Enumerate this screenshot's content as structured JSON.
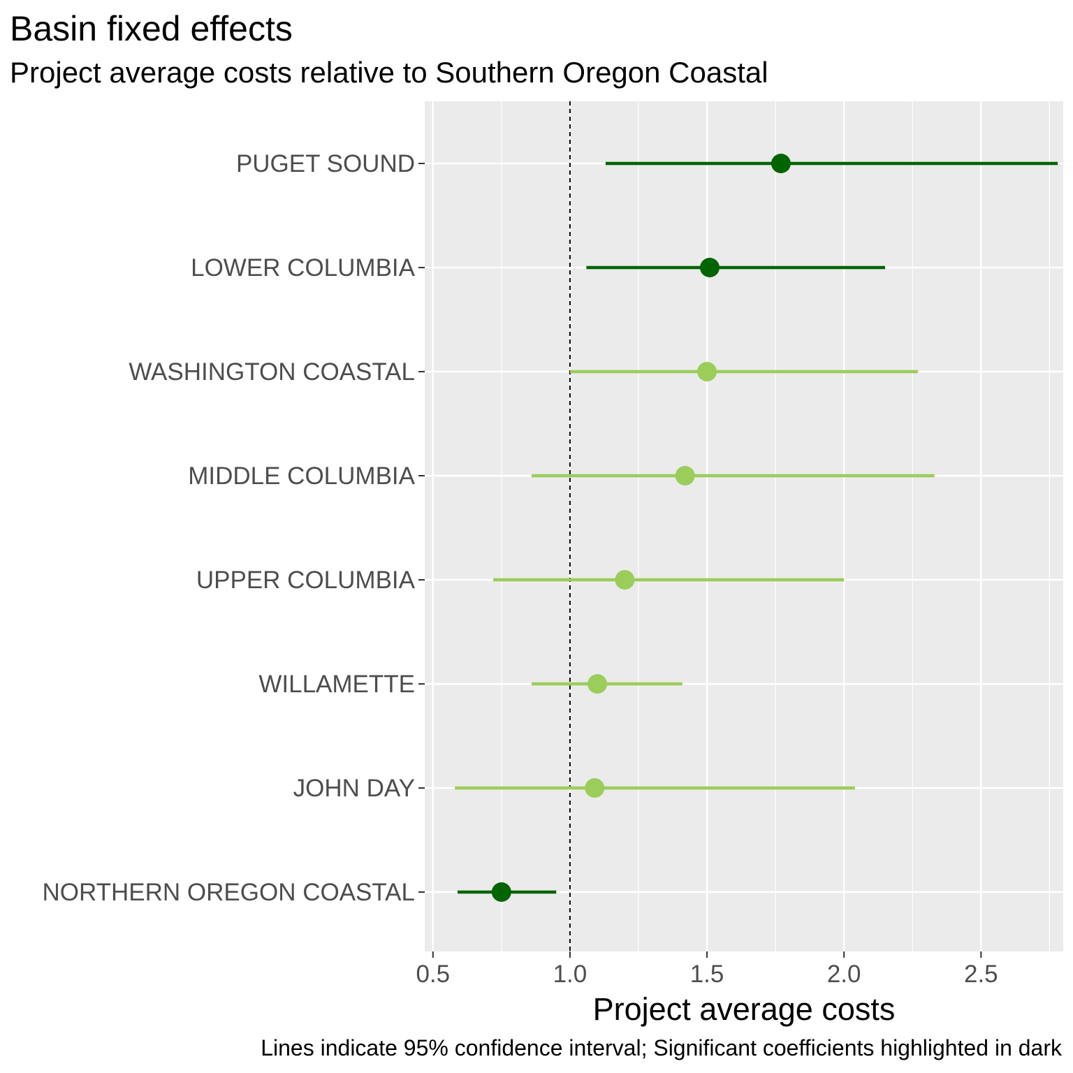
{
  "chart_data": {
    "type": "scatter",
    "title": "Basin fixed effects",
    "subtitle": "Project average costs relative to Southern Oregon Coastal",
    "xlabel": "Project average costs",
    "ylabel": "",
    "caption": "Lines indicate 95% confidence interval; Significant coefficients highlighted in dark",
    "xlim": [
      0.47,
      2.8
    ],
    "x_ticks": [
      "0.5",
      "1.0",
      "1.5",
      "2.0",
      "2.5"
    ],
    "reference_line": 1.0,
    "grid": true,
    "colors": {
      "significant": "#006400",
      "not_significant": "#9ACD5A",
      "panel": "#EBEBEB",
      "grid": "#FFFFFF"
    },
    "categories": [
      "PUGET SOUND",
      "LOWER COLUMBIA",
      "WASHINGTON COASTAL",
      "MIDDLE COLUMBIA",
      "UPPER COLUMBIA",
      "WILLAMETTE",
      "JOHN DAY",
      "NORTHERN OREGON COASTAL"
    ],
    "series": [
      {
        "category": "PUGET SOUND",
        "estimate": 1.77,
        "lower": 1.13,
        "upper": 2.78,
        "significant": true
      },
      {
        "category": "LOWER COLUMBIA",
        "estimate": 1.51,
        "lower": 1.06,
        "upper": 2.15,
        "significant": true
      },
      {
        "category": "WASHINGTON COASTAL",
        "estimate": 1.5,
        "lower": 1.0,
        "upper": 2.27,
        "significant": false
      },
      {
        "category": "MIDDLE COLUMBIA",
        "estimate": 1.42,
        "lower": 0.86,
        "upper": 2.33,
        "significant": false
      },
      {
        "category": "UPPER COLUMBIA",
        "estimate": 1.2,
        "lower": 0.72,
        "upper": 2.0,
        "significant": false
      },
      {
        "category": "WILLAMETTE",
        "estimate": 1.1,
        "lower": 0.86,
        "upper": 1.41,
        "significant": false
      },
      {
        "category": "JOHN DAY",
        "estimate": 1.09,
        "lower": 0.58,
        "upper": 2.04,
        "significant": false
      },
      {
        "category": "NORTHERN OREGON COASTAL",
        "estimate": 0.75,
        "lower": 0.59,
        "upper": 0.95,
        "significant": true
      }
    ]
  }
}
